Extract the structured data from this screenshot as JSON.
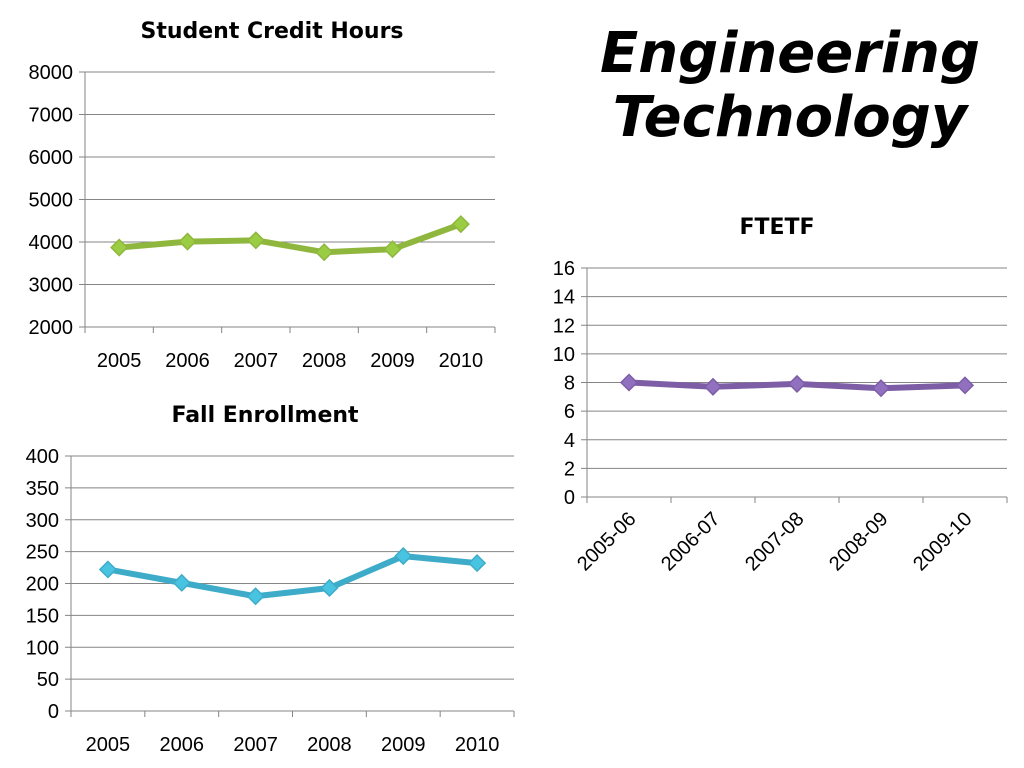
{
  "page": {
    "title_line1": "Engineering",
    "title_line2": "Technology"
  },
  "chart_data": [
    {
      "id": "sch",
      "type": "line",
      "title": "Student Credit Hours",
      "categories": [
        "2005",
        "2006",
        "2007",
        "2008",
        "2009",
        "2010"
      ],
      "values": [
        3870,
        4010,
        4040,
        3760,
        3830,
        4420
      ],
      "ylim": [
        2000,
        8000
      ],
      "yticks": [
        2000,
        3000,
        4000,
        5000,
        6000,
        7000,
        8000
      ],
      "grid": true,
      "legend": "none",
      "color": "#8fb73e",
      "marker_color": "#9acd43"
    },
    {
      "id": "fall",
      "type": "line",
      "title": "Fall Enrollment",
      "categories": [
        "2005",
        "2006",
        "2007",
        "2008",
        "2009",
        "2010"
      ],
      "values": [
        222,
        201,
        180,
        193,
        243,
        232
      ],
      "ylim": [
        0,
        400
      ],
      "yticks": [
        0,
        50,
        100,
        150,
        200,
        250,
        300,
        350,
        400
      ],
      "grid": true,
      "legend": "none",
      "color": "#3eacc9",
      "marker_color": "#48c3e0"
    },
    {
      "id": "ftetf",
      "type": "line",
      "title": "FTETF",
      "categories": [
        "2005-06",
        "2006-07",
        "2007-08",
        "2008-09",
        "2009-10"
      ],
      "values": [
        8.0,
        7.7,
        7.9,
        7.6,
        7.8
      ],
      "ylim": [
        0,
        16
      ],
      "yticks": [
        0,
        2,
        4,
        6,
        8,
        10,
        12,
        14,
        16
      ],
      "grid": true,
      "legend": "none",
      "color": "#7d5ea6",
      "marker_color": "#9270c0"
    }
  ]
}
